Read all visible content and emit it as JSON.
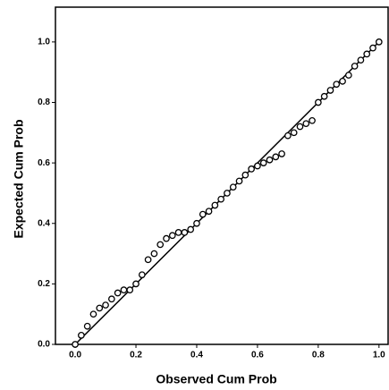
{
  "chart_data": {
    "type": "scatter",
    "x_label": "Observed Cum Prob",
    "y_label": "Expected Cum Prob",
    "x": [
      0,
      0.02,
      0.04,
      0.06,
      0.08,
      0.1,
      0.12,
      0.14,
      0.16,
      0.18,
      0.2,
      0.22,
      0.24,
      0.26,
      0.28,
      0.3,
      0.32,
      0.34,
      0.36,
      0.38,
      0.4,
      0.42,
      0.44,
      0.46,
      0.48,
      0.5,
      0.52,
      0.54,
      0.56,
      0.58,
      0.6,
      0.62,
      0.64,
      0.66,
      0.68,
      0.7,
      0.72,
      0.74,
      0.76,
      0.78,
      0.8,
      0.82,
      0.84,
      0.86,
      0.88,
      0.9,
      0.92,
      0.94,
      0.96,
      0.98,
      1.0
    ],
    "values": [
      0,
      0.03,
      0.06,
      0.1,
      0.12,
      0.13,
      0.15,
      0.17,
      0.18,
      0.18,
      0.2,
      0.23,
      0.28,
      0.3,
      0.33,
      0.35,
      0.36,
      0.37,
      0.37,
      0.38,
      0.4,
      0.43,
      0.44,
      0.46,
      0.48,
      0.5,
      0.52,
      0.54,
      0.56,
      0.58,
      0.59,
      0.6,
      0.61,
      0.62,
      0.63,
      0.69,
      0.7,
      0.72,
      0.73,
      0.74,
      0.8,
      0.82,
      0.84,
      0.86,
      0.87,
      0.89,
      0.92,
      0.94,
      0.96,
      0.98,
      1.0
    ],
    "color": "#000000",
    "xlim": [
      -0.065,
      1.03
    ],
    "ylim": [
      0,
      1.115
    ],
    "xticks": [
      {
        "value": 0,
        "label": "0.0"
      },
      {
        "value": 0.2,
        "label": "0.2"
      },
      {
        "value": 0.4,
        "label": "0.4"
      },
      {
        "value": 0.6,
        "label": "0.6"
      },
      {
        "value": 0.8,
        "label": "0.8"
      },
      {
        "value": 1,
        "label": "1.0"
      }
    ],
    "yticks": [
      {
        "value": 0,
        "label": "0.0"
      },
      {
        "value": 0.2,
        "label": "0.2"
      },
      {
        "value": 0.4,
        "label": "0.4"
      },
      {
        "value": 0.6,
        "label": "0.6"
      },
      {
        "value": 0.8,
        "label": "0.8"
      },
      {
        "value": 1,
        "label": "1.0"
      }
    ],
    "diagonal": true
  }
}
